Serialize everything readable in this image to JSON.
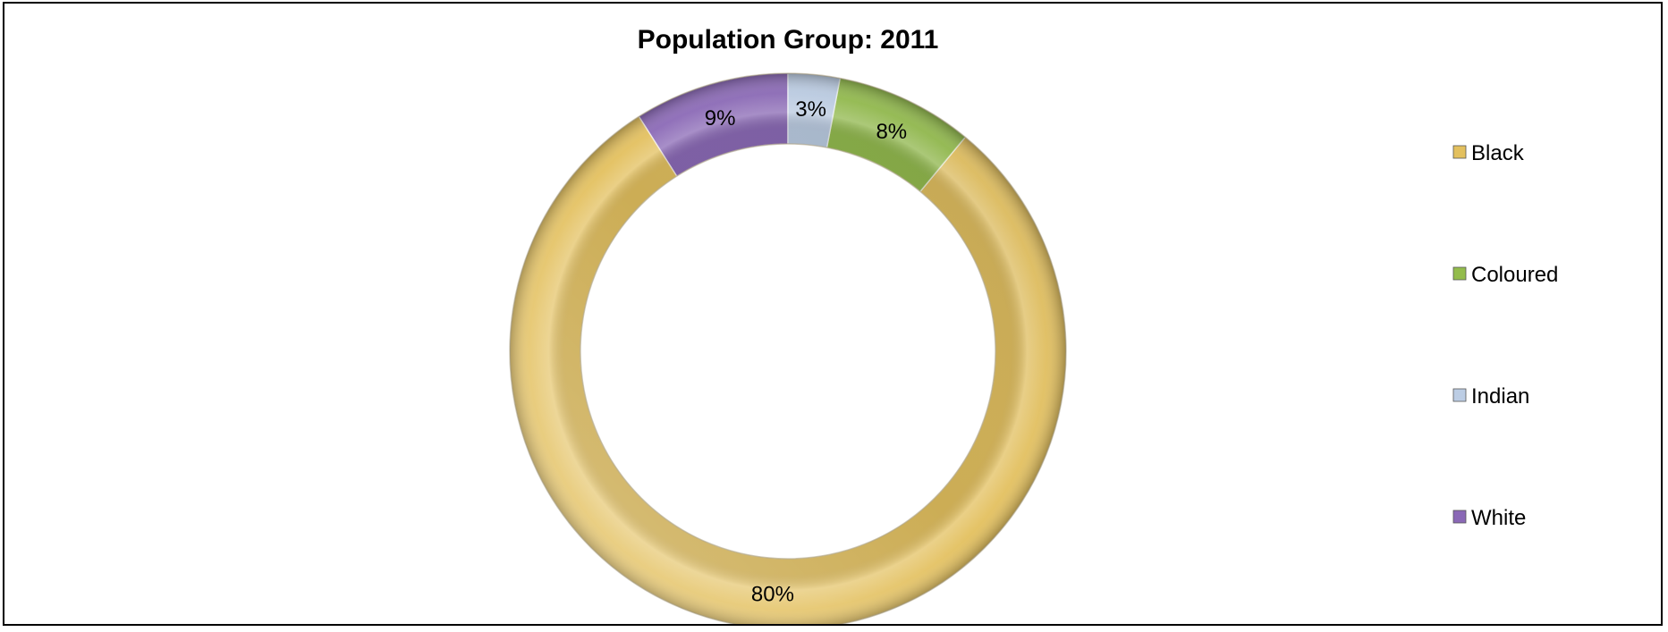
{
  "chart_data": {
    "type": "pie",
    "variant": "doughnut",
    "title": "Population Group: 2011",
    "categories": [
      "Black",
      "Coloured",
      "Indian",
      "White"
    ],
    "values": [
      80,
      8,
      3,
      9
    ],
    "value_labels": [
      "80%",
      "8%",
      "3%",
      "9%"
    ],
    "colors": [
      "#E3C05E",
      "#93BC4C",
      "#BCCDE4",
      "#8A68B6"
    ],
    "start_category": "White",
    "direction": "counter-clockwise",
    "legend_position": "right"
  }
}
